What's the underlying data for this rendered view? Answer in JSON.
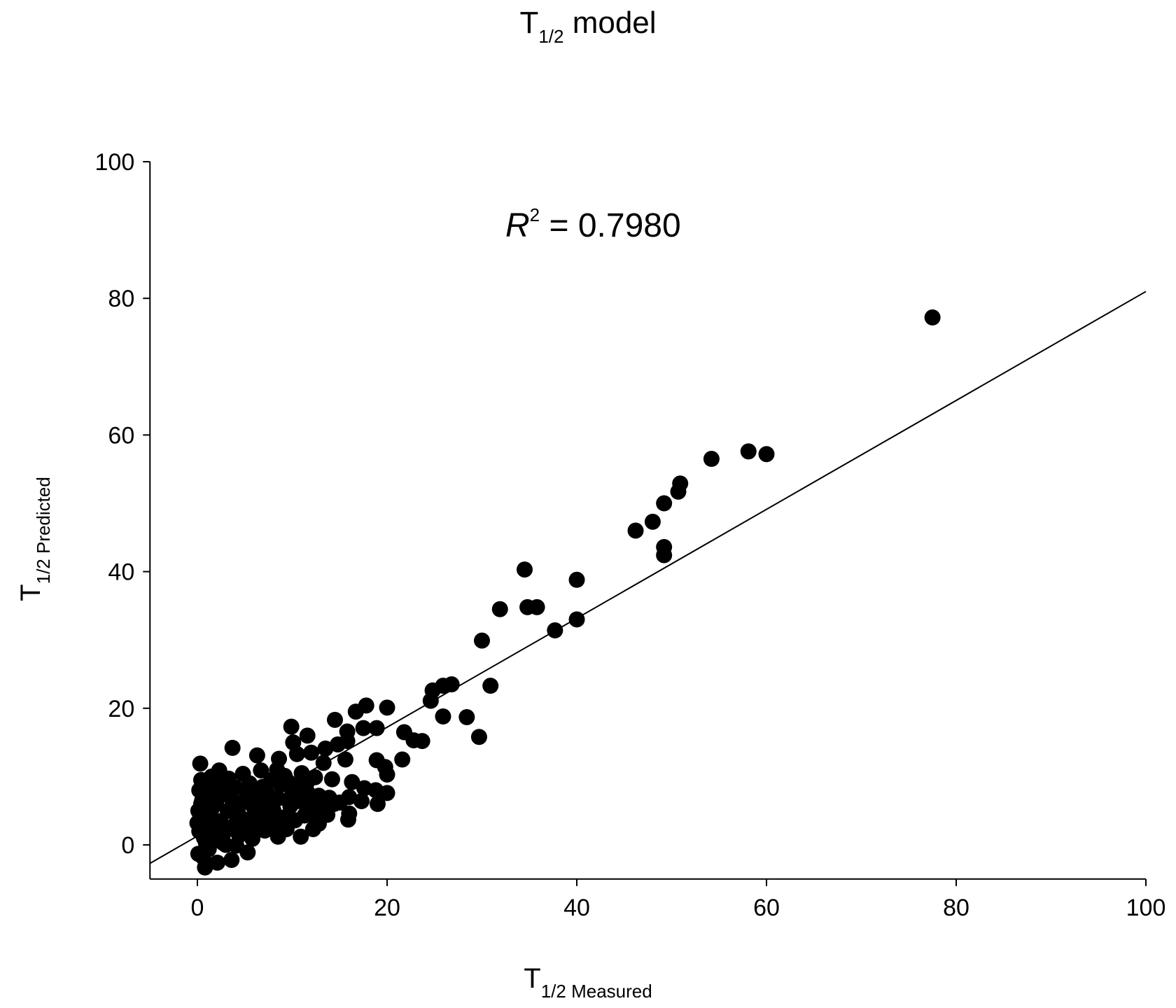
{
  "chart_data": {
    "type": "scatter",
    "title": {
      "main": "T",
      "sub": "1/2",
      "rest": " model"
    },
    "xlabel": {
      "main": "T",
      "sub": "1/2 Measured"
    },
    "ylabel": {
      "main": "T",
      "sub": "1/2 Predicted"
    },
    "annotation": {
      "r": "R",
      "sup": "2",
      "rest": " = 0.7980"
    },
    "xlim": [
      -5,
      100
    ],
    "ylim": [
      -5,
      100
    ],
    "xticks": [
      0,
      20,
      40,
      60,
      80,
      100
    ],
    "yticks": [
      0,
      20,
      40,
      60,
      80,
      100
    ],
    "grid": false,
    "regression_line": {
      "x1": -5,
      "y1": -2.7,
      "x2": 100,
      "y2": 81
    },
    "marker_color": "#000000",
    "points": [
      [
        77.5,
        77.2
      ],
      [
        60,
        57.2
      ],
      [
        58.1,
        57.6
      ],
      [
        54.2,
        56.5
      ],
      [
        50.9,
        52.9
      ],
      [
        50.7,
        51.7
      ],
      [
        49.2,
        50.0
      ],
      [
        48.0,
        47.3
      ],
      [
        46.2,
        46.0
      ],
      [
        49.2,
        43.6
      ],
      [
        49.2,
        42.4
      ],
      [
        34.5,
        40.3
      ],
      [
        40.0,
        38.8
      ],
      [
        31.9,
        34.5
      ],
      [
        34.8,
        34.8
      ],
      [
        35.8,
        34.8
      ],
      [
        40.0,
        33.0
      ],
      [
        37.7,
        31.4
      ],
      [
        30.0,
        29.9
      ],
      [
        30.9,
        23.3
      ],
      [
        26.8,
        23.5
      ],
      [
        25.9,
        23.3
      ],
      [
        24.8,
        22.6
      ],
      [
        24.6,
        21.1
      ],
      [
        25.9,
        18.8
      ],
      [
        28.4,
        18.7
      ],
      [
        29.7,
        15.8
      ],
      [
        20.0,
        20.1
      ],
      [
        17.8,
        20.4
      ],
      [
        16.7,
        19.5
      ],
      [
        14.5,
        18.3
      ],
      [
        18.9,
        17.1
      ],
      [
        17.5,
        17.1
      ],
      [
        15.8,
        16.6
      ],
      [
        21.8,
        16.5
      ],
      [
        22.8,
        15.3
      ],
      [
        23.7,
        15.2
      ],
      [
        9.9,
        17.3
      ],
      [
        11.6,
        16.0
      ],
      [
        10.1,
        15.0
      ],
      [
        13.5,
        14.1
      ],
      [
        14.8,
        14.7
      ],
      [
        15.8,
        15.2
      ],
      [
        3.7,
        14.2
      ],
      [
        10.5,
        13.3
      ],
      [
        6.3,
        13.1
      ],
      [
        8.6,
        12.6
      ],
      [
        12.0,
        13.5
      ],
      [
        13.3,
        12.0
      ],
      [
        15.6,
        12.5
      ],
      [
        18.9,
        12.4
      ],
      [
        21.6,
        12.5
      ],
      [
        19.8,
        11.4
      ],
      [
        20.0,
        10.3
      ],
      [
        0.3,
        11.9
      ],
      [
        2.3,
        10.9
      ],
      [
        4.8,
        10.4
      ],
      [
        6.7,
        10.9
      ],
      [
        8.4,
        11.0
      ],
      [
        11.0,
        10.5
      ],
      [
        12.4,
        9.9
      ],
      [
        14.2,
        9.6
      ],
      [
        16.3,
        9.2
      ],
      [
        17.6,
        8.3
      ],
      [
        18.8,
        8.0
      ],
      [
        20.0,
        7.6
      ],
      [
        19.0,
        6.0
      ],
      [
        17.3,
        6.4
      ],
      [
        16.0,
        7.0
      ],
      [
        16.0,
        4.6
      ],
      [
        15.9,
        3.7
      ],
      [
        13.4,
        4.6
      ],
      [
        12.8,
        3.1
      ],
      [
        12.2,
        2.3
      ],
      [
        10.9,
        1.2
      ],
      [
        8.5,
        1.2
      ],
      [
        7.1,
        2.1
      ],
      [
        5.3,
        -1.1
      ],
      [
        3.6,
        -2.2
      ],
      [
        2.1,
        -2.6
      ],
      [
        0.8,
        -3.3
      ],
      [
        0.1,
        -1.3
      ],
      [
        1.2,
        -0.6
      ],
      [
        2.7,
        0.3
      ],
      [
        4.1,
        -0.1
      ],
      [
        5.8,
        0.9
      ],
      [
        0.2,
        8.0
      ],
      [
        0.5,
        6.5
      ],
      [
        1.0,
        7.8
      ],
      [
        1.8,
        8.5
      ],
      [
        3.0,
        9.1
      ],
      [
        4.0,
        8.4
      ],
      [
        5.5,
        9.0
      ],
      [
        6.4,
        8.0
      ],
      [
        7.4,
        7.5
      ],
      [
        8.8,
        8.8
      ],
      [
        9.6,
        9.2
      ],
      [
        10.5,
        8.6
      ],
      [
        11.6,
        7.7
      ],
      [
        12.8,
        7.2
      ],
      [
        13.9,
        6.9
      ],
      [
        15.0,
        6.2
      ],
      [
        0.1,
        5.0
      ],
      [
        0.3,
        4.2
      ],
      [
        0.6,
        3.0
      ],
      [
        0.2,
        2.0
      ],
      [
        0.7,
        1.0
      ],
      [
        1.1,
        2.4
      ],
      [
        1.4,
        4.0
      ],
      [
        1.6,
        5.5
      ],
      [
        2.0,
        6.4
      ],
      [
        2.4,
        3.5
      ],
      [
        2.8,
        1.8
      ],
      [
        3.2,
        5.0
      ],
      [
        3.5,
        7.0
      ],
      [
        3.9,
        2.9
      ],
      [
        4.3,
        4.6
      ],
      [
        4.7,
        6.2
      ],
      [
        5.0,
        1.8
      ],
      [
        5.4,
        3.7
      ],
      [
        5.9,
        5.6
      ],
      [
        6.2,
        2.7
      ],
      [
        6.7,
        4.4
      ],
      [
        7.2,
        6.0
      ],
      [
        7.6,
        3.3
      ],
      [
        8.0,
        5.1
      ],
      [
        8.5,
        6.8
      ],
      [
        9.0,
        4.0
      ],
      [
        9.4,
        2.3
      ],
      [
        9.8,
        5.7
      ],
      [
        10.3,
        3.6
      ],
      [
        10.8,
        6.4
      ],
      [
        11.3,
        4.3
      ],
      [
        11.9,
        5.6
      ],
      [
        12.5,
        3.9
      ],
      [
        13.1,
        5.5
      ],
      [
        13.7,
        4.4
      ],
      [
        14.4,
        6.0
      ],
      [
        0.4,
        9.5
      ],
      [
        1.5,
        10.0
      ],
      [
        3.3,
        9.7
      ],
      [
        4.6,
        3.0
      ],
      [
        6.0,
        7.0
      ],
      [
        7.8,
        9.5
      ],
      [
        9.2,
        10.1
      ],
      [
        0.9,
        0.3
      ],
      [
        1.9,
        0.9
      ],
      [
        3.0,
        0.0
      ],
      [
        4.4,
        1.4
      ],
      [
        0.0,
        3.2
      ],
      [
        0.4,
        6.0
      ],
      [
        2.2,
        2.6
      ],
      [
        3.7,
        5.8
      ],
      [
        5.1,
        7.9
      ],
      [
        6.9,
        8.5
      ],
      [
        8.2,
        3.2
      ],
      [
        10.0,
        7.4
      ],
      [
        11.5,
        9.0
      ],
      [
        0.6,
        -1.8
      ],
      [
        1.3,
        1.4
      ],
      [
        2.6,
        8.0
      ]
    ]
  }
}
